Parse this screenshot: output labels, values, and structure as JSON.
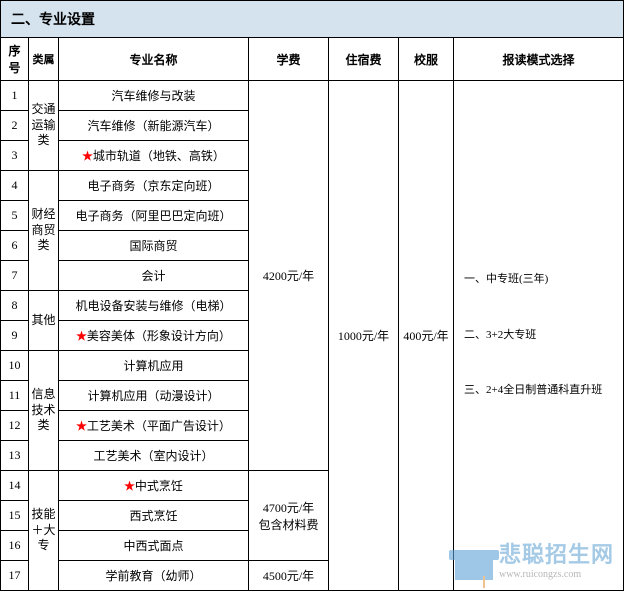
{
  "title": "二、专业设置",
  "headers": {
    "seq": "序号",
    "cat": "类属",
    "major": "专业名称",
    "tuition": "学费",
    "dorm": "住宿费",
    "uniform": "校服",
    "mode": "报读模式选择"
  },
  "rows": {
    "r1": "1",
    "r2": "2",
    "r3": "3",
    "r4": "4",
    "r5": "5",
    "r6": "6",
    "r7": "7",
    "r8": "8",
    "r9": "9",
    "r10": "10",
    "r11": "11",
    "r12": "12",
    "r13": "13",
    "r14": "14",
    "r15": "15",
    "r16": "16",
    "r17": "17"
  },
  "cats": {
    "c1": "交通运输类",
    "c2": "财经商贸类",
    "c3": "其他",
    "c4": "信息技术类",
    "c5": "技能＋大专"
  },
  "majors": {
    "m1": "汽车维修与改装",
    "m2": "汽车维修（新能源汽车）",
    "m3": "城市轨道（地铁、高铁）",
    "m4": "电子商务（京东定向班）",
    "m5": "电子商务（阿里巴巴定向班）",
    "m6": "国际商贸",
    "m7": "会计",
    "m8": "机电设备安装与维修（电梯）",
    "m9": "美容美体（形象设计方向）",
    "m10": "计算机应用",
    "m11": "计算机应用（动漫设计）",
    "m12": "工艺美术（平面广告设计）",
    "m13": "工艺美术（室内设计）",
    "m14": "中式烹饪",
    "m15": "西式烹饪",
    "m16": "中西式面点",
    "m17": "学前教育（幼师）"
  },
  "fees": {
    "tuition1": "4200元/年",
    "tuition2_a": "4700元/年",
    "tuition2_b": "包含材料费",
    "tuition3": "4500元/年",
    "dorm": "1000元/年",
    "uniform": "400元/年"
  },
  "modes": {
    "mo1": "一、中专班(三年)",
    "mo2": "二、3+2大专班",
    "mo3": "三、2+4全日制普通科直升班"
  },
  "watermark": {
    "chinese": "悲聪招生网",
    "url": "www.ruicongzs.com"
  },
  "colors": {
    "header_bg": "#d5e3ef",
    "border": "#000000",
    "star": "#ff0000",
    "wm_blue": "#6aa8d6"
  },
  "star_marker": "★"
}
